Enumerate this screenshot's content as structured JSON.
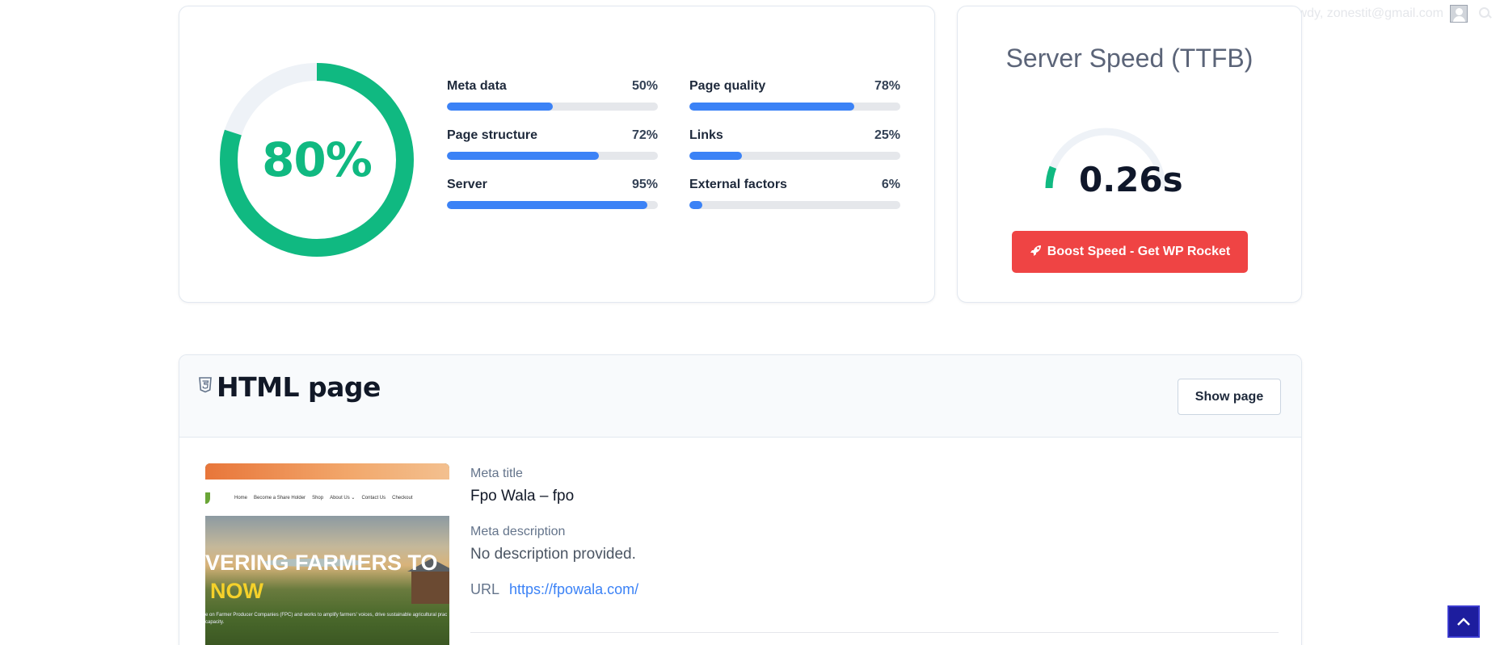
{
  "admin_bar": {
    "greeting": "Howdy, zonestit@gmail.com",
    "avatar_icon": "user-avatar-icon",
    "search_icon": "search-icon"
  },
  "score": {
    "overall": "80%",
    "overall_fraction": 0.8,
    "ring_color": "#10b981",
    "ring_track_color": "#eef2f7",
    "metrics": [
      {
        "label": "Meta data",
        "pct": "50%",
        "value": 0.5
      },
      {
        "label": "Page quality",
        "pct": "78%",
        "value": 0.78
      },
      {
        "label": "Page structure",
        "pct": "72%",
        "value": 0.72
      },
      {
        "label": "Links",
        "pct": "25%",
        "value": 0.25
      },
      {
        "label": "Server",
        "pct": "95%",
        "value": 0.95
      },
      {
        "label": "External factors",
        "pct": "6%",
        "value": 0.06
      }
    ],
    "bar_color": "#3b82f6"
  },
  "speed": {
    "title": "Server Speed (TTFB)",
    "value": "0.26s",
    "gauge_fraction": 0.12,
    "boost_label": "Boost Speed - Get WP Rocket",
    "boost_icon": "rocket-icon",
    "boost_color": "#ef4444"
  },
  "html_page": {
    "title": "HTML page",
    "title_icon": "html5-icon",
    "show_button": "Show page",
    "thumbnail": {
      "nav_items": [
        "Home",
        "Become a Share Holder",
        "Shop",
        "About Us ⌄",
        "Contact Us",
        "Checkout"
      ],
      "headline_1": "VERING FARMERS TO",
      "headline_2": "NOW",
      "blurb": "e on Farmer Producer Companies (FPC) and works to amplify farmers' voices, drive sustainable agricultural prac capacity."
    },
    "meta_title_label": "Meta title",
    "meta_title": "Fpo Wala – fpo",
    "meta_description_label": "Meta description",
    "meta_description": "No description provided.",
    "url_label": "URL",
    "url": "https://fpowala.com/"
  },
  "scroll_top_icon": "chevron-up-icon"
}
